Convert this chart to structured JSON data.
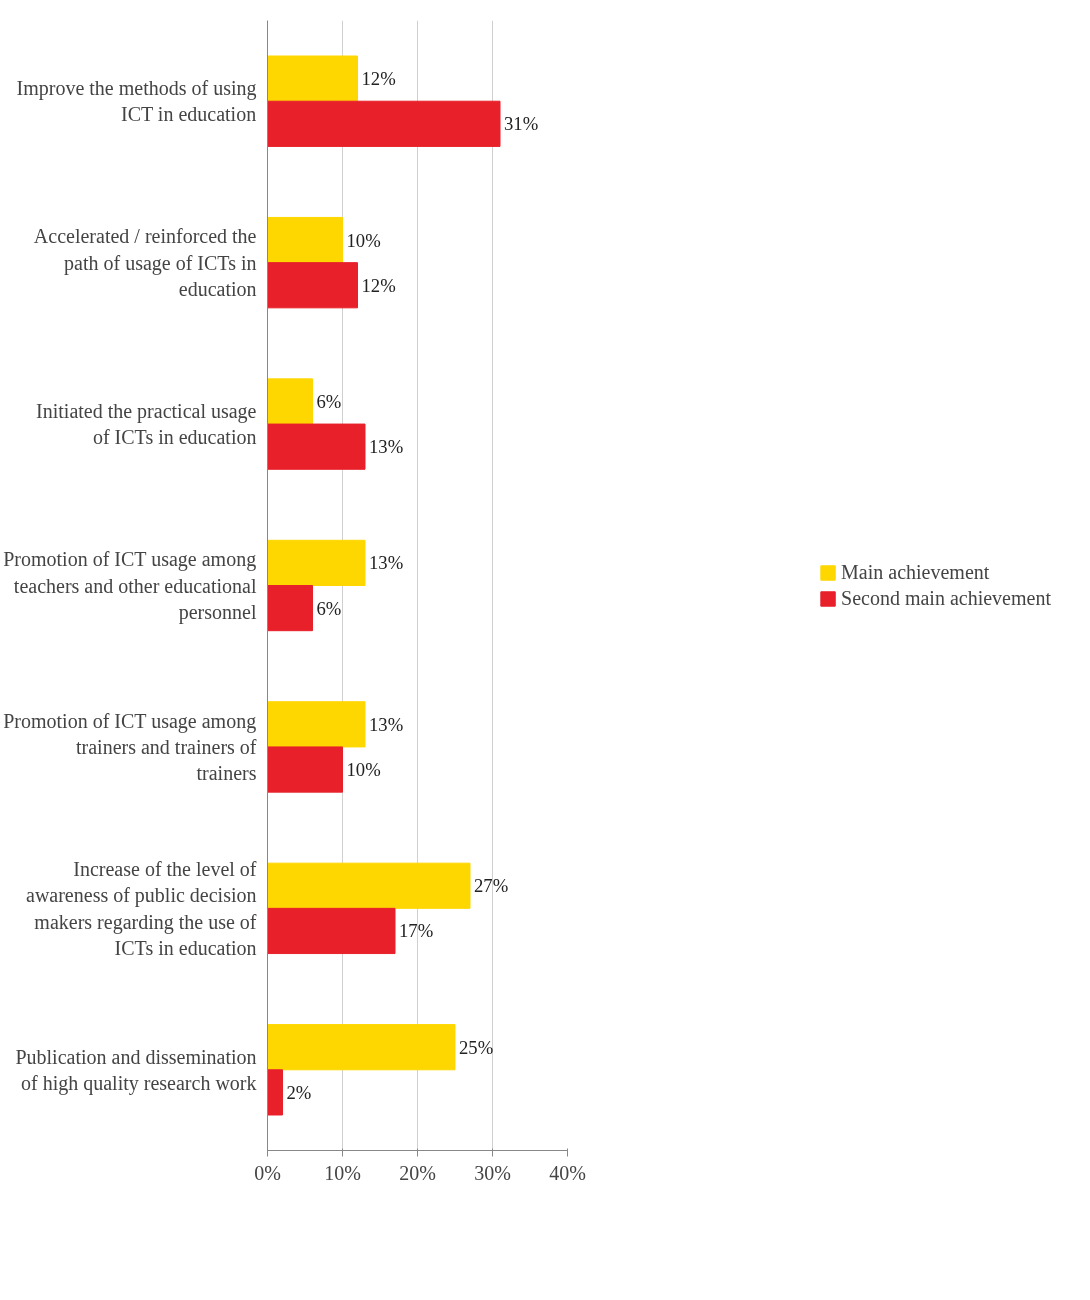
{
  "chart_data": {
    "type": "bar",
    "orientation": "horizontal",
    "categories": [
      "Improve the methods of using ICT in education",
      "Accelerated / reinforced the path of usage of ICTs in education",
      "Initiated the practical usage of ICTs in education",
      "Promotion of ICT usage among teachers and other educational personnel",
      "Promotion of ICT usage among trainers and trainers of trainers",
      "Increase of the level of awareness of public decision makers regarding the use of ICTs in education",
      "Publication and dissemination of high quality research work"
    ],
    "series": [
      {
        "name": "Main achievement",
        "color": "#ffd700",
        "values": [
          12,
          10,
          6,
          13,
          13,
          27,
          25
        ],
        "value_labels": [
          "12%",
          "10%",
          "6%",
          "13%",
          "13%",
          "27%",
          "25%"
        ]
      },
      {
        "name": "Second main achievement",
        "color": "#e8202a",
        "values": [
          31,
          12,
          13,
          6,
          10,
          17,
          2
        ],
        "value_labels": [
          "31%",
          "12%",
          "13%",
          "6%",
          "10%",
          "17%",
          "2%"
        ]
      }
    ],
    "xlim": [
      0,
      40
    ],
    "xticks": [
      {
        "value": 0,
        "label": "0%"
      },
      {
        "value": 10,
        "label": "10%"
      },
      {
        "value": 20,
        "label": "20%"
      },
      {
        "value": 30,
        "label": "30%"
      },
      {
        "value": 40,
        "label": "40%"
      }
    ],
    "grid": "x",
    "legend": "right"
  }
}
